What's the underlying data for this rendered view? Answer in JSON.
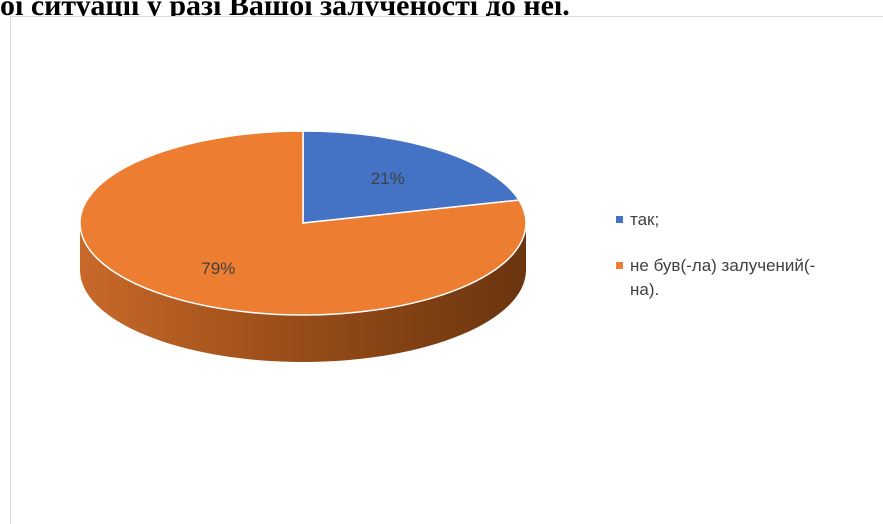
{
  "page": {
    "heading": "ої ситуації у разі Вашої залученості до неї."
  },
  "chart_data": {
    "type": "pie",
    "title": "",
    "slices": [
      {
        "label": "так;",
        "value": 21,
        "data_label": "21%",
        "color": "#4472c4",
        "side_color": "#2f4f8a"
      },
      {
        "label": "не був(-ла) залучений(-\nна).",
        "value": 79,
        "data_label": "79%",
        "color": "#ed7d31",
        "side_color": "#a44f14"
      }
    ],
    "legend": "right",
    "style": "3d",
    "units": "%"
  }
}
